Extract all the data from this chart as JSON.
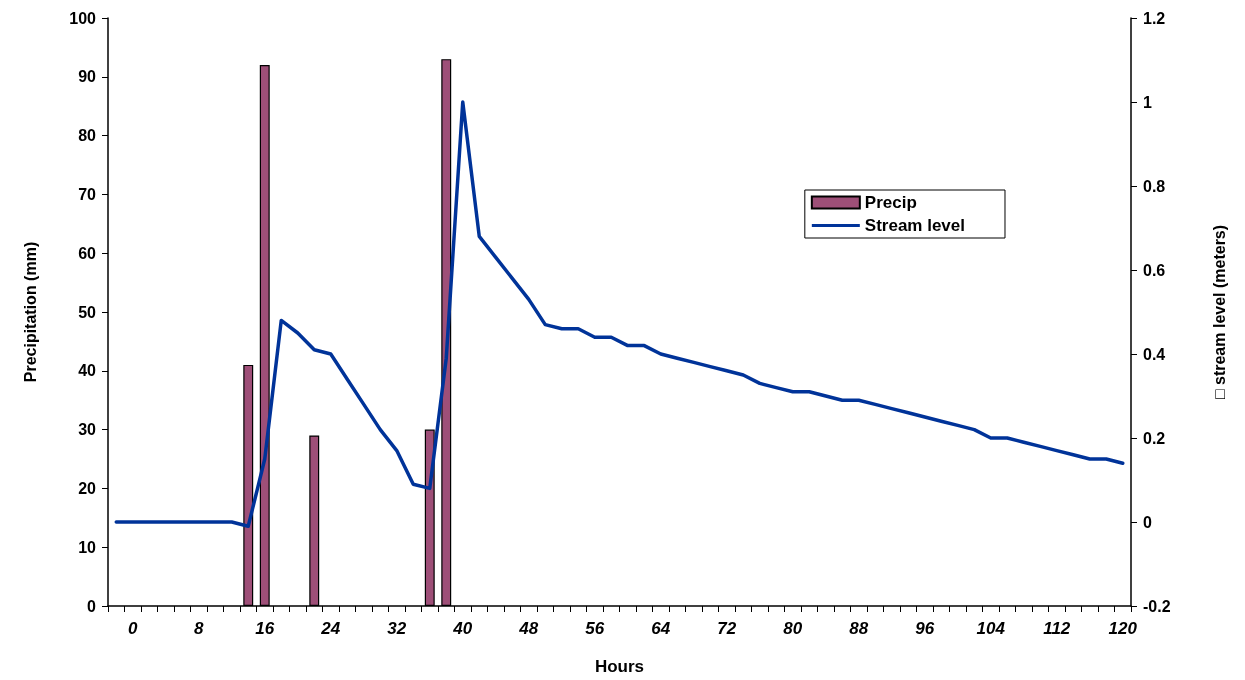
{
  "chart_data": {
    "type": "bar",
    "xlabel": "Hours",
    "ylabel": "Precipitation (mm)",
    "y2label": "□ stream level (meters)",
    "categories": [
      null,
      "0",
      null,
      null,
      null,
      "8",
      null,
      null,
      null,
      "16",
      null,
      null,
      null,
      "24",
      null,
      null,
      null,
      "32",
      null,
      null,
      null,
      "40",
      null,
      null,
      null,
      "48",
      null,
      null,
      null,
      "56",
      null,
      null,
      null,
      "64",
      null,
      null,
      null,
      "72",
      null,
      null,
      null,
      "80",
      null,
      null,
      null,
      "88",
      null,
      null,
      null,
      "96",
      null,
      null,
      null,
      "104",
      null,
      null,
      null,
      "112",
      null,
      null,
      null,
      "120"
    ],
    "series": [
      {
        "name": "Precip",
        "type": "bar",
        "color": "#9e4f78",
        "values": [
          null,
          null,
          null,
          null,
          null,
          null,
          null,
          null,
          41,
          92,
          null,
          null,
          29,
          null,
          null,
          null,
          null,
          null,
          null,
          30,
          93,
          null,
          null,
          null,
          null,
          null,
          null,
          null,
          null,
          null,
          null,
          null,
          null,
          null,
          null,
          null,
          null,
          null,
          null,
          null,
          null,
          null,
          null,
          null,
          null,
          null,
          null,
          null,
          null,
          null,
          null,
          null,
          null,
          null,
          null,
          null,
          null,
          null,
          null,
          null,
          null,
          null
        ]
      },
      {
        "name": "Stream level",
        "type": "line",
        "axis": "y2",
        "color": "#003399",
        "values": [
          0,
          0,
          0,
          0,
          0,
          0,
          0,
          0,
          -0.01,
          0.15,
          0.48,
          0.45,
          0.41,
          0.4,
          0.34,
          0.28,
          0.22,
          0.17,
          0.09,
          0.08,
          0.39,
          1.0,
          0.68,
          0.63,
          0.58,
          0.53,
          0.47,
          0.46,
          0.46,
          0.44,
          0.44,
          0.42,
          0.42,
          0.4,
          0.39,
          0.38,
          0.37,
          0.36,
          0.35,
          0.33,
          0.32,
          0.31,
          0.31,
          0.3,
          0.29,
          0.29,
          0.28,
          0.27,
          0.26,
          0.25,
          0.24,
          0.23,
          0.22,
          0.2,
          0.2,
          0.19,
          0.18,
          0.17,
          0.16,
          0.15,
          0.15,
          0.14
        ]
      }
    ],
    "ylim": [
      0,
      100
    ],
    "yticks": [
      0,
      10,
      20,
      30,
      40,
      50,
      60,
      70,
      80,
      90,
      100
    ],
    "y2lim": [
      -0.2,
      1.2
    ],
    "y2ticks": [
      -0.2,
      0,
      0.2,
      0.4,
      0.6,
      0.8,
      1,
      1.2
    ],
    "grid": false,
    "legend": "top right",
    "marker": "none"
  }
}
